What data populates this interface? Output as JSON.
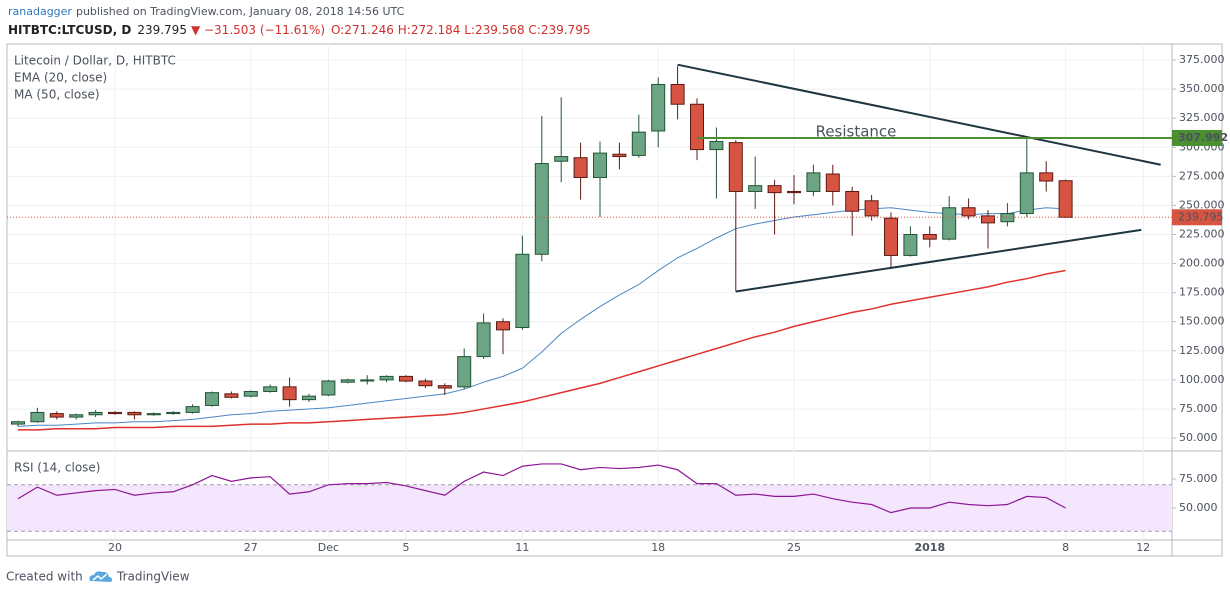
{
  "header": {
    "author": "ranadagger",
    "published": "published on TradingView.com, January 08, 2018 14:56 UTC",
    "symbol": "HITBTC:LTCUSD, D",
    "last": "239.795",
    "change": "▼ −31.503 (−11.61%)",
    "ohlc": "O:271.246 H:272.184 L:239.568 C:239.795"
  },
  "chart_data": [
    {
      "type": "candlestick",
      "title": "Litecoin / Dollar, D, HITBTC",
      "categories": [
        null,
        null,
        null,
        null,
        null,
        "20",
        null,
        null,
        null,
        null,
        null,
        null,
        "27",
        null,
        null,
        null,
        "Dec",
        null,
        null,
        null,
        "5",
        null,
        null,
        null,
        null,
        null,
        "11",
        null,
        null,
        null,
        null,
        null,
        null,
        "18",
        null,
        null,
        null,
        null,
        null,
        null,
        "25",
        null,
        null,
        null,
        null,
        null,
        null,
        "2018",
        null,
        null,
        null,
        null,
        null,
        null,
        "8",
        null,
        null,
        null,
        "12"
      ],
      "open": [
        62,
        64,
        71,
        68,
        70,
        72,
        72,
        70,
        71,
        72,
        78,
        88,
        86,
        90,
        94,
        83,
        87,
        98,
        99,
        100,
        103,
        99,
        95,
        94,
        120,
        150,
        145,
        208,
        288,
        291,
        274,
        294,
        293,
        314,
        354,
        337,
        298,
        304,
        262,
        267,
        262,
        262,
        277,
        262,
        254,
        239,
        207,
        225,
        221,
        248,
        241,
        236,
        243,
        278,
        271.246,
        null,
        null,
        null,
        null
      ],
      "high": [
        65,
        76,
        73,
        71,
        74,
        73,
        73,
        72,
        73,
        79,
        90,
        90,
        91,
        96,
        102,
        88,
        100,
        101,
        104,
        104,
        104,
        101,
        97,
        127,
        157,
        153,
        224,
        327,
        343,
        304,
        305,
        304,
        328,
        360,
        370,
        342,
        317,
        306,
        292,
        272,
        276,
        285,
        285,
        266,
        259,
        244,
        232,
        232,
        258,
        256,
        246,
        252,
        307,
        288,
        272.184,
        null,
        null,
        null,
        null
      ],
      "low": [
        60,
        63,
        66,
        66,
        68,
        70,
        66,
        69,
        70,
        71,
        77,
        84,
        85,
        89,
        77,
        81,
        86,
        97,
        96,
        98,
        98,
        93,
        87,
        92,
        118,
        122,
        143,
        202,
        270,
        255,
        240,
        281,
        291,
        300,
        324,
        289,
        256,
        176,
        247,
        225,
        251,
        258,
        250,
        224,
        237,
        196,
        206,
        214,
        220,
        238,
        213,
        232,
        240,
        262,
        239.568,
        null,
        null,
        null,
        null
      ],
      "close": [
        64,
        72,
        68,
        70,
        72,
        71,
        70,
        71,
        72,
        77,
        89,
        85,
        90,
        94,
        83,
        86,
        99,
        100,
        100,
        103,
        99,
        95,
        93,
        120,
        149,
        143,
        208,
        286,
        292,
        274,
        295,
        292,
        313,
        354,
        337,
        298,
        305,
        262,
        267,
        261,
        261,
        278,
        262,
        245,
        241,
        207,
        225,
        221,
        248,
        241,
        235,
        243,
        278,
        271,
        239.795,
        null,
        null,
        null,
        null
      ],
      "up_color": "#6ba583",
      "down_color": "#d75442",
      "series": [
        {
          "name": "EMA (20, close)",
          "color": "#4a86c5",
          "values": [
            60,
            61,
            61,
            62,
            63,
            63,
            64,
            64,
            65,
            66,
            68,
            70,
            71,
            73,
            74,
            75,
            76,
            78,
            80,
            82,
            84,
            86,
            88,
            92,
            98,
            103,
            110,
            124,
            140,
            152,
            163,
            173,
            182,
            194,
            205,
            213,
            222,
            230,
            234,
            237,
            240,
            242,
            244,
            246,
            247,
            248,
            246,
            244,
            243,
            242,
            243,
            243,
            246,
            248,
            247,
            null,
            null,
            null,
            null
          ]
        },
        {
          "name": "MA (50, close)",
          "color": "#e0312d",
          "values": [
            57,
            57,
            58,
            58,
            58,
            59,
            59,
            59,
            60,
            60,
            60,
            61,
            62,
            62,
            63,
            63,
            64,
            65,
            66,
            67,
            68,
            69,
            70,
            72,
            75,
            78,
            81,
            85,
            89,
            93,
            97,
            102,
            107,
            112,
            117,
            122,
            127,
            132,
            137,
            141,
            146,
            150,
            154,
            158,
            161,
            165,
            168,
            171,
            174,
            177,
            180,
            184,
            187,
            191,
            194,
            null,
            null,
            null,
            null
          ]
        }
      ],
      "last_label": "239.795",
      "resistance": {
        "text": "Resistance",
        "level": {
          "value": 307.992,
          "label": "307.992"
        },
        "from": 35,
        "color": "#4b8f31"
      },
      "trendlines": [
        {
          "color": "#1f3541",
          "points": [
            [
              34,
              371
            ],
            [
              58.9,
              285
            ]
          ]
        },
        {
          "color": "#1f3541",
          "points": [
            [
              37,
              176
            ],
            [
              57.9,
              229
            ]
          ]
        }
      ],
      "ylim": [
        39.7,
        388.8
      ],
      "yticks": [
        {
          "value": 50,
          "label": "50.000"
        },
        {
          "value": 75,
          "label": "75.000"
        },
        {
          "value": 100,
          "label": "100.000"
        },
        {
          "value": 125,
          "label": "125.000"
        },
        {
          "value": 150,
          "label": "150.000"
        },
        {
          "value": 175,
          "label": "175.000"
        },
        {
          "value": 200,
          "label": "200.000"
        },
        {
          "value": 225,
          "label": "225.000"
        },
        {
          "value": 250,
          "label": "250.000"
        },
        {
          "value": 275,
          "label": "275.000"
        },
        {
          "value": 300,
          "label": "300.000"
        },
        {
          "value": 325,
          "label": "325.000"
        },
        {
          "value": 350,
          "label": "350.000"
        },
        {
          "value": 375,
          "label": "375.000"
        }
      ],
      "grid": true
    },
    {
      "type": "line",
      "title": "RSI (14, close)",
      "color": "#8e1599",
      "values": [
        58,
        68,
        61,
        63,
        65,
        66,
        61,
        63,
        64,
        70,
        78,
        73,
        76,
        77,
        62,
        64,
        70,
        71,
        71,
        72,
        69,
        65,
        61,
        73,
        81,
        78,
        86,
        88,
        88,
        83,
        85,
        84,
        85,
        87,
        83,
        71,
        71,
        61,
        62,
        60,
        60,
        62,
        58,
        55,
        53,
        46,
        50,
        50,
        55,
        53,
        52,
        53,
        60,
        59,
        50,
        null,
        null,
        null,
        null
      ],
      "band": [
        30,
        70
      ],
      "ylim": [
        22.4,
        98.3
      ],
      "yticks": [
        {
          "value": 50,
          "label": "50.000"
        },
        {
          "value": 75,
          "label": "75.000"
        }
      ]
    }
  ],
  "footer": {
    "created": "Created with",
    "brand": "TradingView"
  }
}
